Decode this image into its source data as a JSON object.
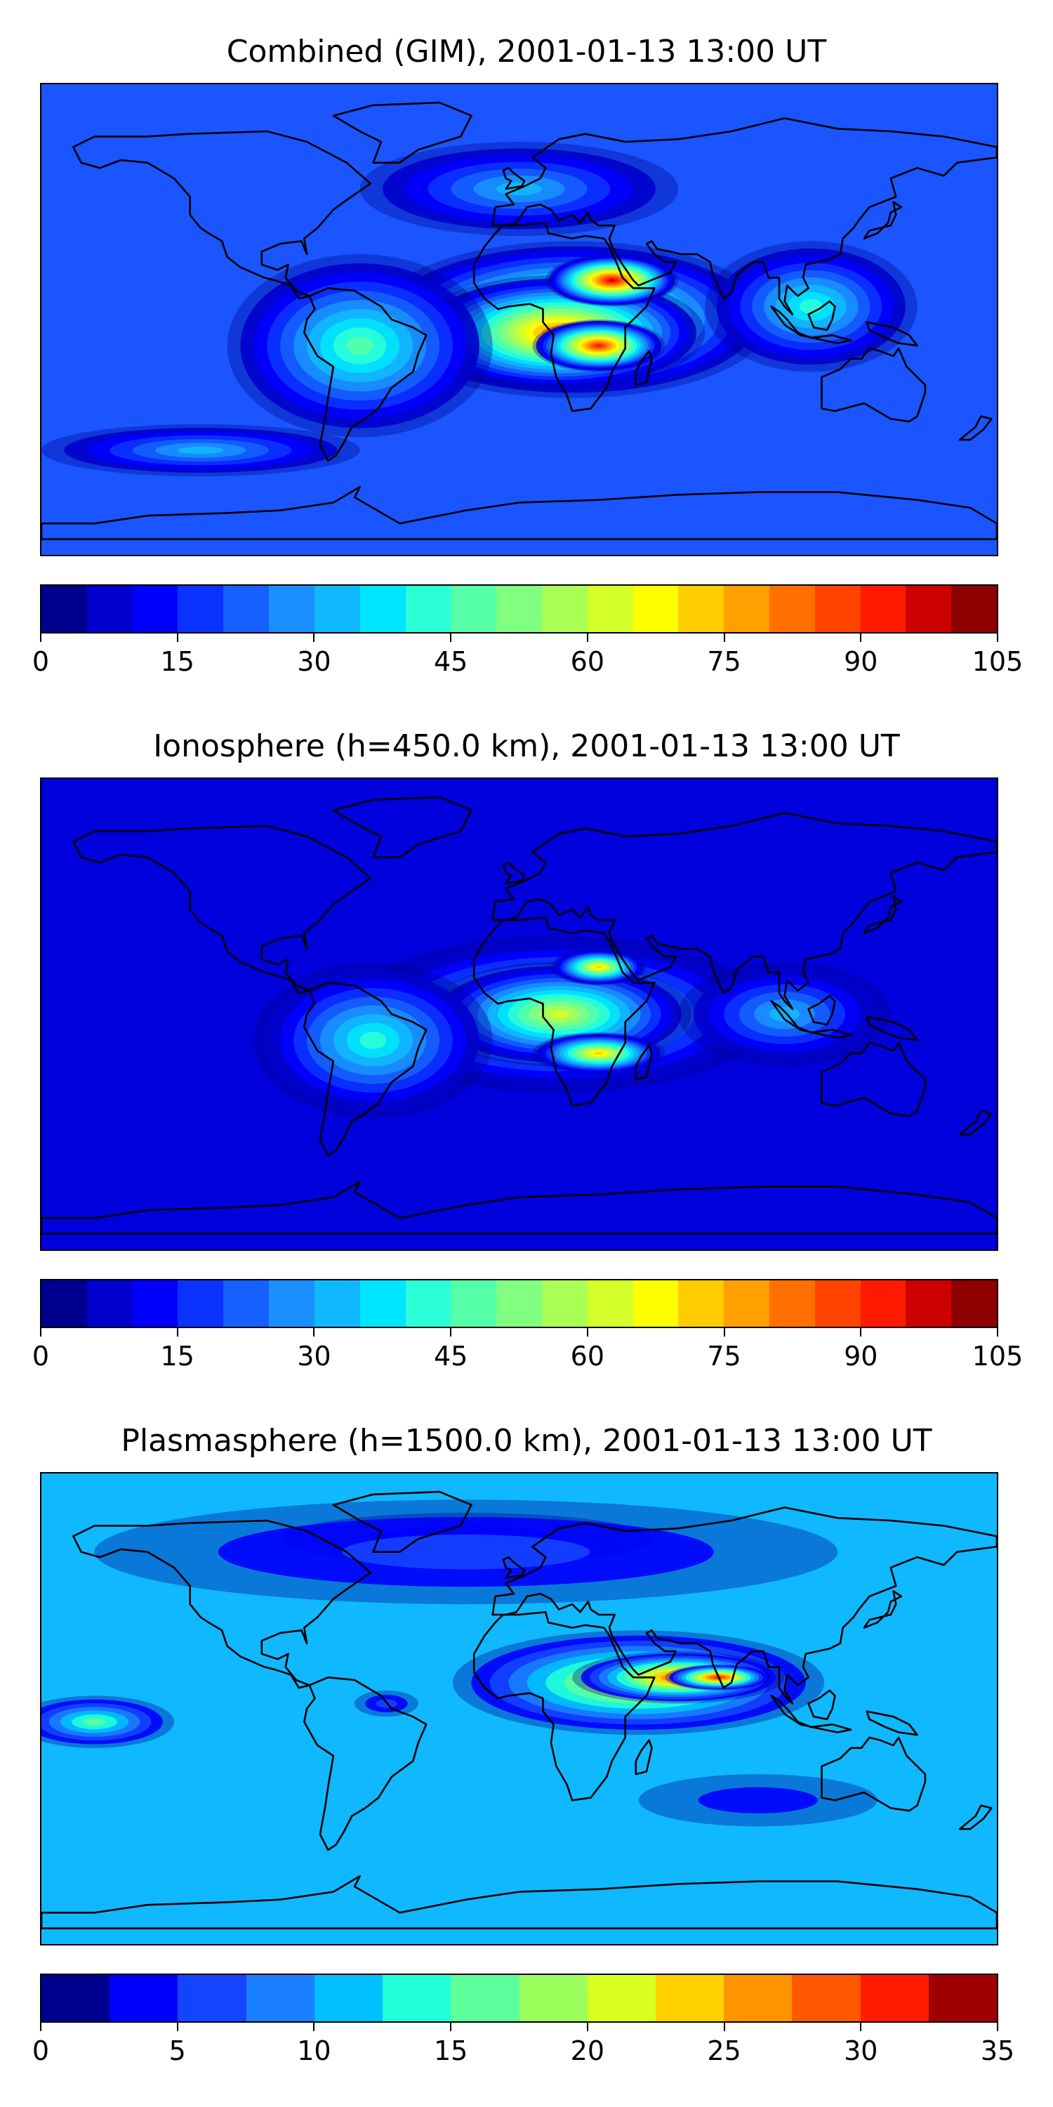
{
  "chart_data": [
    {
      "type": "heatmap",
      "title": "Combined (GIM), 2001-01-13 13:00 UT",
      "colorbar": {
        "min": 0,
        "max": 105,
        "step": 5,
        "tick_labels": [
          "0",
          "15",
          "30",
          "45",
          "60",
          "75",
          "90",
          "105"
        ]
      },
      "colors": [
        "#00008f",
        "#0000cc",
        "#0000ff",
        "#0a33ff",
        "#1560ff",
        "#1a90ff",
        "#10b8ff",
        "#00e5ff",
        "#2affd6",
        "#55ffa8",
        "#80ff80",
        "#aaff55",
        "#d4ff2a",
        "#ffff00",
        "#ffcc00",
        "#ff9f00",
        "#ff7000",
        "#ff4400",
        "#ff1a00",
        "#cc0000",
        "#8f0000"
      ],
      "background_color": "#1a55ff",
      "blobs": [
        {
          "lon": 20,
          "lat": 0,
          "value": 70,
          "rx": 75,
          "ry": 30
        },
        {
          "lon": 15,
          "lat": -5,
          "value": 80,
          "rx": 55,
          "ry": 22
        },
        {
          "lon": 35,
          "lat": 15,
          "value": 95,
          "rx": 25,
          "ry": 10
        },
        {
          "lon": 30,
          "lat": -10,
          "value": 88,
          "rx": 25,
          "ry": 10
        },
        {
          "lon": -60,
          "lat": -10,
          "value": 45,
          "rx": 50,
          "ry": 35
        },
        {
          "lon": 110,
          "lat": 5,
          "value": 40,
          "rx": 40,
          "ry": 25
        },
        {
          "lon": 0,
          "lat": 50,
          "value": 30,
          "rx": 60,
          "ry": 18
        },
        {
          "lon": -120,
          "lat": -50,
          "value": 28,
          "rx": 60,
          "ry": 10
        }
      ]
    },
    {
      "type": "heatmap",
      "title": "Ionosphere  (h=450.0 km), 2001-01-13 13:00 UT",
      "colorbar": {
        "min": 0,
        "max": 105,
        "step": 5,
        "tick_labels": [
          "0",
          "15",
          "30",
          "45",
          "60",
          "75",
          "90",
          "105"
        ]
      },
      "colors": [
        "#00008f",
        "#0000cc",
        "#0000ff",
        "#0a33ff",
        "#1560ff",
        "#1a90ff",
        "#10b8ff",
        "#00e5ff",
        "#2affd6",
        "#55ffa8",
        "#80ff80",
        "#aaff55",
        "#d4ff2a",
        "#ffff00",
        "#ffcc00",
        "#ff9f00",
        "#ff7000",
        "#ff4400",
        "#ff1a00",
        "#cc0000",
        "#8f0000"
      ],
      "background_color": "#0000dd",
      "blobs": [
        {
          "lon": 15,
          "lat": 0,
          "value": 50,
          "rx": 80,
          "ry": 30
        },
        {
          "lon": 15,
          "lat": 0,
          "value": 60,
          "rx": 50,
          "ry": 20
        },
        {
          "lon": 30,
          "lat": 18,
          "value": 70,
          "rx": 18,
          "ry": 7
        },
        {
          "lon": 30,
          "lat": -15,
          "value": 72,
          "rx": 25,
          "ry": 8
        },
        {
          "lon": -55,
          "lat": -10,
          "value": 38,
          "rx": 45,
          "ry": 30
        },
        {
          "lon": 100,
          "lat": 0,
          "value": 30,
          "rx": 40,
          "ry": 20
        }
      ]
    },
    {
      "type": "heatmap",
      "title": "Plasmasphere (h=1500.0 km), 2001-01-13 13:00 UT",
      "colorbar": {
        "min": 0,
        "max": 35,
        "step": 2.5,
        "tick_labels": [
          "0",
          "5",
          "10",
          "15",
          "20",
          "25",
          "30",
          "35"
        ]
      },
      "colors": [
        "#00008f",
        "#0000ff",
        "#1444ff",
        "#1a80ff",
        "#00c0ff",
        "#20ffd8",
        "#5cff9c",
        "#9cff5c",
        "#d8ff20",
        "#ffd000",
        "#ff9400",
        "#ff5800",
        "#ff1c00",
        "#a00000"
      ],
      "background_color": "#10b8ff",
      "blobs": [
        {
          "lon": 45,
          "lat": 10,
          "value": 22,
          "rx": 70,
          "ry": 20
        },
        {
          "lon": 60,
          "lat": 12,
          "value": 28,
          "rx": 40,
          "ry": 10
        },
        {
          "lon": 75,
          "lat": 12,
          "value": 31,
          "rx": 20,
          "ry": 5
        },
        {
          "lon": -160,
          "lat": -5,
          "value": 14,
          "rx": 30,
          "ry": 10
        },
        {
          "lon": 90,
          "lat": -35,
          "value": 3,
          "rx": 45,
          "ry": 10
        },
        {
          "lon": -20,
          "lat": 65,
          "value": 3,
          "rx": 70,
          "ry": 10
        },
        {
          "lon": -20,
          "lat": 60,
          "value": 5,
          "rx": 140,
          "ry": 20
        },
        {
          "lon": -50,
          "lat": 2,
          "value": 6,
          "rx": 12,
          "ry": 5
        }
      ]
    }
  ]
}
